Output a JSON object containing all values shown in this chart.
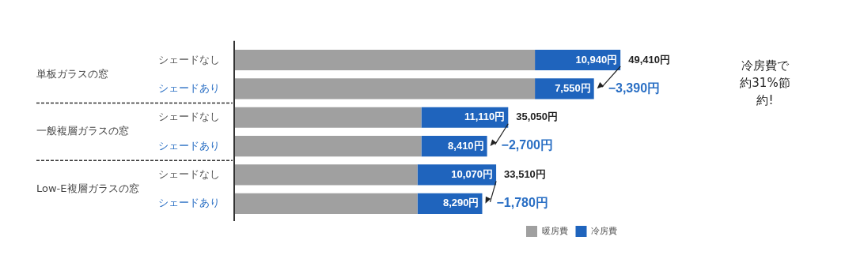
{
  "chart_data": {
    "type": "bar",
    "orientation": "horizontal",
    "stacked": true,
    "categories": [
      "シェードなし",
      "シェードあり",
      "シェードなし",
      "シェードあり",
      "シェードなし",
      "シェードあり"
    ],
    "series": [
      {
        "name": "暖房費",
        "color": "#a0a0a0",
        "values": [
          38470,
          38470,
          23940,
          23940,
          23440,
          23440
        ],
        "value_labels": [
          null,
          null,
          null,
          null,
          null,
          null
        ]
      },
      {
        "name": "冷房費",
        "color": "#1f64bd",
        "values": [
          10940,
          7550,
          11110,
          8410,
          10070,
          8290
        ],
        "value_labels": [
          "10,940円",
          "7,550円",
          "11,110円",
          "8,410円",
          "10,070円",
          "8,290円"
        ]
      }
    ],
    "totals": [
      "49,410円",
      null,
      "35,050円",
      null,
      "33,510円",
      null
    ],
    "tick_labels": "y",
    "legend": "bottom right",
    "annotations": [
      "単板ガラスの窓",
      "一般複層ガラスの窓",
      "Low-E複層ガラスの窓",
      "−3,390円",
      "−2,700円",
      "−1,780円",
      "冷房費で約31%節約!"
    ]
  }
}
